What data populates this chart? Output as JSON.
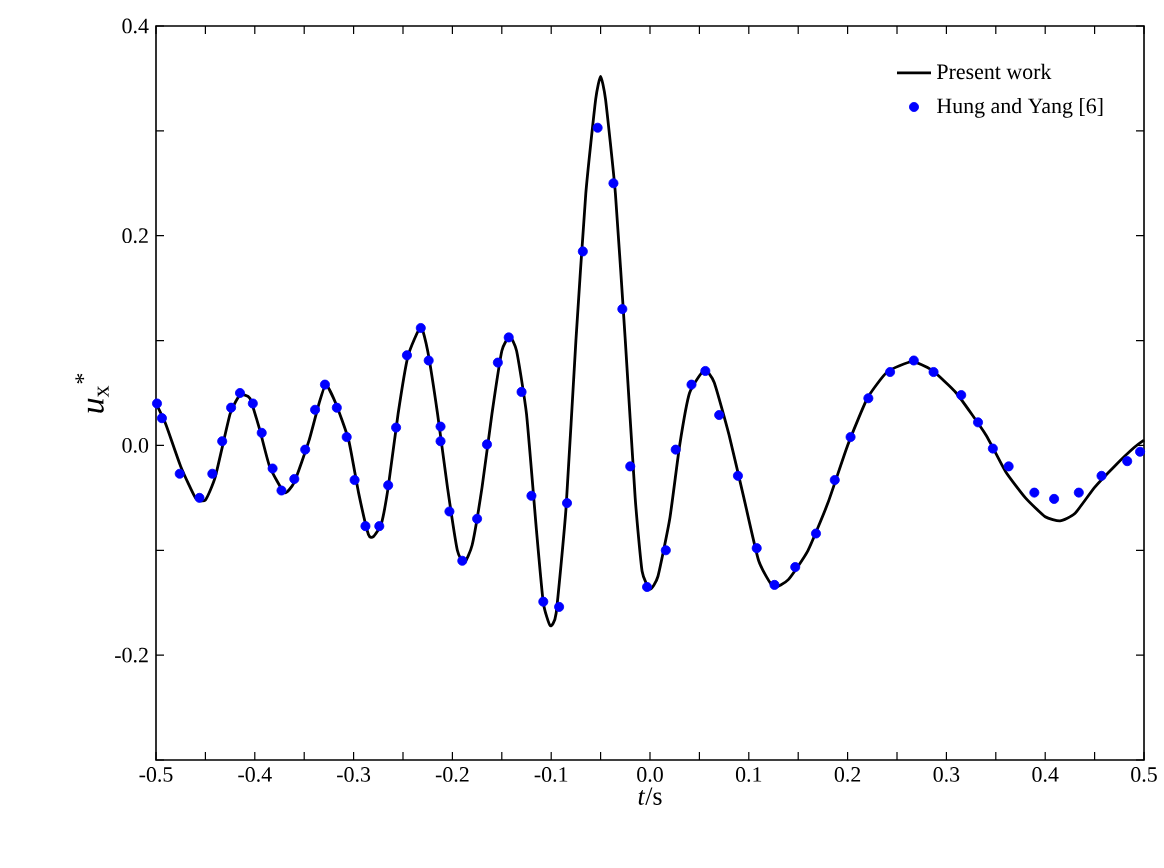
{
  "chart_data": {
    "type": "line",
    "xlabel": "*t*/s",
    "ylabel": "*u*$_{x}$$^{*}$",
    "xlim": [
      -0.5,
      0.5
    ],
    "ylim": [
      -0.3,
      0.4
    ],
    "xticks": [
      -0.5,
      {
        "value": -0.45,
        "label": null
      },
      -0.4,
      {
        "value": -0.35,
        "label": null
      },
      -0.3,
      {
        "value": -0.25,
        "label": null
      },
      -0.2,
      {
        "value": -0.15,
        "label": null
      },
      -0.1,
      {
        "value": -0.05,
        "label": null
      },
      {
        "value": 0,
        "label": "0.0"
      },
      {
        "value": 0.05,
        "label": null
      },
      0.1,
      {
        "value": 0.15,
        "label": null
      },
      0.2,
      {
        "value": 0.25,
        "label": null
      },
      0.3,
      {
        "value": 0.35,
        "label": null
      },
      0.4,
      {
        "value": 0.45,
        "label": null
      },
      0.5
    ],
    "yticks": [
      {
        "value": -0.3,
        "label": null
      },
      -0.2,
      {
        "value": -0.1,
        "label": null
      },
      {
        "value": 0,
        "label": "0.0"
      },
      {
        "value": 0.1,
        "label": null
      },
      0.2,
      {
        "value": 0.3,
        "label": null
      },
      0.4
    ],
    "legend": "top right",
    "grid": false,
    "series": [
      {
        "name": "Present work",
        "color": "#000000",
        "marker": "none",
        "line_style": "solid",
        "x": [
          -0.5,
          -0.49,
          -0.475,
          -0.46,
          -0.45,
          -0.44,
          -0.425,
          -0.415,
          -0.405,
          -0.395,
          -0.385,
          -0.37,
          -0.36,
          -0.345,
          -0.335,
          -0.328,
          -0.318,
          -0.305,
          -0.295,
          -0.285,
          -0.28,
          -0.272,
          -0.265,
          -0.255,
          -0.245,
          -0.232,
          -0.225,
          -0.215,
          -0.205,
          -0.195,
          -0.188,
          -0.18,
          -0.17,
          -0.16,
          -0.15,
          -0.142,
          -0.135,
          -0.125,
          -0.115,
          -0.108,
          -0.101,
          -0.095,
          -0.085,
          -0.075,
          -0.065,
          -0.055,
          -0.05,
          -0.045,
          -0.035,
          -0.025,
          -0.015,
          -0.008,
          0.0,
          0.008,
          0.02,
          0.03,
          0.04,
          0.055,
          0.065,
          0.08,
          0.095,
          0.11,
          0.125,
          0.14,
          0.16,
          0.18,
          0.2,
          0.22,
          0.24,
          0.265,
          0.285,
          0.31,
          0.34,
          0.36,
          0.38,
          0.4,
          0.415,
          0.43,
          0.45,
          0.47,
          0.49,
          0.5
        ],
        "values": [
          0.04,
          0.02,
          -0.02,
          -0.05,
          -0.052,
          -0.03,
          0.03,
          0.048,
          0.045,
          0.015,
          -0.02,
          -0.045,
          -0.035,
          0.005,
          0.04,
          0.058,
          0.04,
          0.005,
          -0.045,
          -0.085,
          -0.087,
          -0.075,
          -0.04,
          0.03,
          0.085,
          0.113,
          0.09,
          0.03,
          -0.04,
          -0.1,
          -0.112,
          -0.095,
          -0.04,
          0.03,
          0.09,
          0.104,
          0.09,
          0.03,
          -0.08,
          -0.15,
          -0.172,
          -0.16,
          -0.06,
          0.1,
          0.24,
          0.33,
          0.352,
          0.33,
          0.24,
          0.1,
          -0.05,
          -0.12,
          -0.137,
          -0.125,
          -0.07,
          0.0,
          0.05,
          0.072,
          0.06,
          0.01,
          -0.05,
          -0.11,
          -0.135,
          -0.128,
          -0.1,
          -0.055,
          0.0,
          0.045,
          0.07,
          0.08,
          0.072,
          0.05,
          0.01,
          -0.025,
          -0.05,
          -0.068,
          -0.072,
          -0.065,
          -0.04,
          -0.02,
          -0.002,
          0.005
        ]
      },
      {
        "name": "Hung and Yang [6]",
        "type": "scatter",
        "color": "#0000ff",
        "marker": "circle",
        "x": [
          -0.499,
          -0.494,
          -0.476,
          -0.456,
          -0.443,
          -0.433,
          -0.424,
          -0.415,
          -0.402,
          -0.393,
          -0.382,
          -0.373,
          -0.36,
          -0.349,
          -0.339,
          -0.329,
          -0.317,
          -0.307,
          -0.299,
          -0.288,
          -0.274,
          -0.265,
          -0.257,
          -0.246,
          -0.232,
          -0.224,
          -0.212,
          -0.212,
          -0.203,
          -0.19,
          -0.175,
          -0.165,
          -0.154,
          -0.143,
          -0.13,
          -0.12,
          -0.108,
          -0.092,
          -0.084,
          -0.068,
          -0.053,
          -0.037,
          -0.028,
          -0.02,
          -0.003,
          0.016,
          0.026,
          0.042,
          0.056,
          0.07,
          0.089,
          0.108,
          0.126,
          0.147,
          0.168,
          0.187,
          0.203,
          0.221,
          0.243,
          0.267,
          0.287,
          0.315,
          0.332,
          0.347,
          0.363,
          0.389,
          0.409,
          0.434,
          0.457,
          0.483,
          0.496
        ],
        "values": [
          0.04,
          0.026,
          -0.027,
          -0.05,
          -0.027,
          0.004,
          0.036,
          0.05,
          0.04,
          0.012,
          -0.022,
          -0.043,
          -0.032,
          -0.004,
          0.034,
          0.058,
          0.036,
          0.008,
          -0.033,
          -0.077,
          -0.077,
          -0.038,
          0.017,
          0.086,
          0.112,
          0.081,
          0.018,
          0.004,
          -0.063,
          -0.11,
          -0.07,
          0.001,
          0.079,
          0.103,
          0.051,
          -0.048,
          -0.149,
          -0.154,
          -0.055,
          0.185,
          0.303,
          0.25,
          0.13,
          -0.02,
          -0.135,
          -0.1,
          -0.004,
          0.058,
          0.071,
          0.029,
          -0.029,
          -0.098,
          -0.133,
          -0.116,
          -0.084,
          -0.033,
          0.008,
          0.045,
          0.07,
          0.081,
          0.07,
          0.048,
          0.022,
          -0.003,
          -0.02,
          -0.045,
          -0.051,
          -0.045,
          -0.029,
          -0.015,
          -0.006
        ]
      }
    ]
  }
}
